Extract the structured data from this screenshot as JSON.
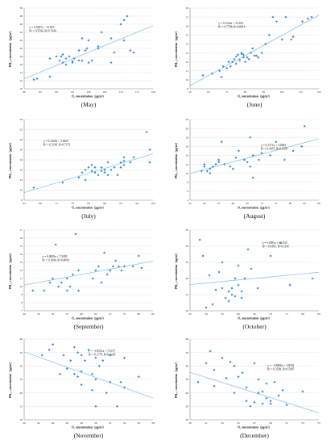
{
  "chart_data": [
    {
      "type": "scatter",
      "label": "(May)",
      "xlabel": "O₃ concentration（μg/m³）",
      "ylabel": "PM₂.₅ concentration（μg/m³）",
      "xlim": [
        80,
        120
      ],
      "xticks": [
        80,
        85,
        90,
        95,
        100,
        105,
        110,
        115,
        120
      ],
      "ylim": [
        10,
        30
      ],
      "yticks": [
        10,
        12,
        14,
        16,
        18,
        20,
        22,
        24,
        26,
        28,
        30
      ],
      "equation": "y = 0.3287x − 13.815",
      "r2": "R² = 0.5542, R=0.7444",
      "trendline": {
        "slope": 0.3287,
        "intercept": -13.815
      },
      "points": [
        [
          83,
          12.3
        ],
        [
          84,
          12.5
        ],
        [
          88,
          13
        ],
        [
          88,
          17.5
        ],
        [
          90,
          18
        ],
        [
          91,
          17
        ],
        [
          91.5,
          18
        ],
        [
          92,
          16.5
        ],
        [
          92,
          18.5
        ],
        [
          93,
          16
        ],
        [
          93,
          17.5
        ],
        [
          94,
          18
        ],
        [
          95,
          16.8
        ],
        [
          95,
          16.5
        ],
        [
          95.5,
          17.5
        ],
        [
          97,
          17
        ],
        [
          97,
          19.5
        ],
        [
          98,
          17
        ],
        [
          98,
          22.5
        ],
        [
          99,
          19.5
        ],
        [
          99.5,
          20
        ],
        [
          100,
          22
        ],
        [
          100,
          16.5
        ],
        [
          101,
          17
        ],
        [
          103,
          20
        ],
        [
          103,
          20.5
        ],
        [
          104,
          24
        ],
        [
          107,
          16.5
        ],
        [
          107,
          22.5
        ],
        [
          108,
          19
        ],
        [
          110,
          26
        ],
        [
          111,
          22
        ],
        [
          111,
          27
        ],
        [
          112,
          28
        ],
        [
          113,
          19.5
        ],
        [
          114,
          19
        ]
      ]
    },
    {
      "type": "scatter",
      "label": "(June)",
      "xlabel": "O₃ concentration（μg/m³）",
      "ylabel": "PM₂.₅ concentration（μg/m³）",
      "xlim": [
        55,
        125
      ],
      "xticks": [
        55,
        65,
        75,
        85,
        95,
        105,
        115,
        125
      ],
      "ylim": [
        9,
        18
      ],
      "yticks": [
        9,
        10,
        11,
        12,
        13,
        14,
        15,
        16,
        17,
        18
      ],
      "equation": "y = 0.1124x + 3.1653",
      "r2": "R² = 0.7768, R=0.8814",
      "trendline": {
        "slope": 0.1124,
        "intercept": 3.1653
      },
      "points": [
        [
          62,
          10.5
        ],
        [
          67,
          10.7
        ],
        [
          71,
          11
        ],
        [
          72,
          10.3
        ],
        [
          73,
          11.5
        ],
        [
          75,
          11.3
        ],
        [
          76,
          12
        ],
        [
          77,
          11.5
        ],
        [
          78,
          12
        ],
        [
          79,
          12.3
        ],
        [
          80,
          11.8
        ],
        [
          80,
          12.6
        ],
        [
          81,
          12.8
        ],
        [
          82,
          12.2
        ],
        [
          83,
          13
        ],
        [
          83,
          12.9
        ],
        [
          84,
          12.5
        ],
        [
          84,
          12.8
        ],
        [
          85,
          12
        ],
        [
          86,
          12.5
        ],
        [
          87,
          12.3
        ],
        [
          88,
          13
        ],
        [
          89,
          13.5
        ],
        [
          90,
          12.7
        ],
        [
          91,
          12.7
        ],
        [
          92,
          12.5
        ],
        [
          94,
          13
        ],
        [
          96,
          14
        ],
        [
          98,
          15
        ],
        [
          100,
          17
        ],
        [
          102,
          16.5
        ],
        [
          105,
          14.5
        ],
        [
          107,
          17
        ],
        [
          110,
          14.5
        ],
        [
          111,
          14.8
        ],
        [
          116,
          16.5
        ],
        [
          119,
          16.8
        ],
        [
          121,
          17
        ]
      ]
    },
    {
      "type": "scatter",
      "label": "(July)",
      "xlabel": "O₃ concentration（μg/m³）",
      "ylabel": "PM₂.₅ concentration（μg/m³）",
      "xlim": [
        63,
        103
      ],
      "xticks": [
        63,
        68,
        73,
        78,
        83,
        88,
        93,
        98,
        103
      ],
      "ylim": [
        8,
        24
      ],
      "yticks": [
        8,
        10,
        12,
        14,
        16,
        18,
        20,
        22,
        24
      ],
      "equation": "y = 0.1929x − 2.6613",
      "r2": "R² = 0.5149, R=0.7176",
      "trendline": {
        "slope": 0.1929,
        "intercept": -2.6613
      },
      "points": [
        [
          66,
          10.5
        ],
        [
          75,
          11.5
        ],
        [
          80,
          12.5
        ],
        [
          81,
          13.5
        ],
        [
          82,
          14
        ],
        [
          82,
          12
        ],
        [
          83,
          14.5
        ],
        [
          84,
          13.8
        ],
        [
          84,
          15
        ],
        [
          85,
          13.5
        ],
        [
          85,
          14.5
        ],
        [
          86,
          13
        ],
        [
          87,
          13.8
        ],
        [
          87,
          14.5
        ],
        [
          88,
          14
        ],
        [
          88,
          13.5
        ],
        [
          89,
          15.5
        ],
        [
          89,
          13
        ],
        [
          90,
          14
        ],
        [
          91,
          14.5
        ],
        [
          92,
          13
        ],
        [
          93,
          15.5
        ],
        [
          93,
          14.5
        ],
        [
          94,
          15
        ],
        [
          94,
          15.8
        ],
        [
          94,
          16.5
        ],
        [
          96,
          15.5
        ],
        [
          97,
          16.5
        ],
        [
          101,
          21.5
        ],
        [
          102,
          18
        ],
        [
          102,
          15.5
        ]
      ]
    },
    {
      "type": "scatter",
      "label": "(August)",
      "xlabel": "O₃ concentration（μg/m³）",
      "ylabel": "PM₂.₅ concentration（μg/m³）",
      "xlim": [
        45,
        90
      ],
      "xticks": [
        45,
        50,
        55,
        60,
        65,
        70,
        75,
        80,
        85,
        90
      ],
      "ylim": [
        4,
        22
      ],
      "yticks": [
        4,
        6,
        8,
        10,
        12,
        14,
        16,
        18,
        20,
        22
      ],
      "equation": "y = 0.1711x + 2.2862",
      "r2": "R² = 0.4297, R=0.6555",
      "trendline": {
        "slope": 0.1711,
        "intercept": 2.2862
      },
      "points": [
        [
          49,
          10.5
        ],
        [
          50,
          11.5
        ],
        [
          50,
          12
        ],
        [
          51,
          10.5
        ],
        [
          52,
          11
        ],
        [
          52,
          10
        ],
        [
          53,
          11.5
        ],
        [
          54,
          12
        ],
        [
          55,
          13
        ],
        [
          55,
          12.5
        ],
        [
          56,
          17
        ],
        [
          57,
          12
        ],
        [
          59,
          11.5
        ],
        [
          60,
          11
        ],
        [
          61,
          13.5
        ],
        [
          62,
          15
        ],
        [
          64,
          13
        ],
        [
          65,
          12.5
        ],
        [
          66,
          11.5
        ],
        [
          66,
          18
        ],
        [
          67,
          14
        ],
        [
          67,
          9
        ],
        [
          69,
          13
        ],
        [
          70,
          14.5
        ],
        [
          73,
          14
        ],
        [
          75,
          17
        ],
        [
          78,
          13
        ],
        [
          81,
          15
        ],
        [
          84,
          16
        ],
        [
          85,
          20.5
        ]
      ]
    },
    {
      "type": "scatter",
      "label": "(September)",
      "xlabel": "O₃ concentration（μg/m³）",
      "ylabel": "PM₂.₅ concentration（μg/m³）",
      "xlim": [
        40,
        85
      ],
      "xticks": [
        40,
        45,
        50,
        55,
        60,
        65,
        70,
        75,
        80,
        85
      ],
      "ylim": [
        7,
        17
      ],
      "yticks": [
        7,
        8,
        9,
        10,
        11,
        12,
        13,
        14,
        15,
        16,
        17
      ],
      "equation": "y = 0.0659x + 7.5495",
      "r2": "R² = 0.1604, R=0.4004",
      "trendline": {
        "slope": 0.0659,
        "intercept": 7.5495
      },
      "points": [
        [
          43,
          9.5
        ],
        [
          47,
          9.5
        ],
        [
          49,
          10.5
        ],
        [
          50,
          11
        ],
        [
          51,
          15.2
        ],
        [
          52,
          10
        ],
        [
          53,
          10.5
        ],
        [
          55,
          9.5
        ],
        [
          55,
          11
        ],
        [
          56,
          10
        ],
        [
          57,
          11.5
        ],
        [
          58,
          16.5
        ],
        [
          59,
          9.5
        ],
        [
          59,
          12
        ],
        [
          64,
          11
        ],
        [
          65,
          12
        ],
        [
          66,
          12.5
        ],
        [
          67,
          10.5
        ],
        [
          68,
          14.2
        ],
        [
          69,
          11.5
        ],
        [
          70,
          12
        ],
        [
          71,
          12.5
        ],
        [
          72,
          13.2
        ],
        [
          73,
          12.5
        ],
        [
          74,
          12
        ],
        [
          75,
          12.5
        ],
        [
          78,
          12.5
        ],
        [
          80,
          13.8
        ],
        [
          81,
          12.3
        ]
      ]
    },
    {
      "type": "scatter",
      "label": "(October)",
      "xlabel": "O₃ concentration（μg/m³）",
      "ylabel": "PM₂.₅ concentration（μg/m³）",
      "xlim": [
        45,
        85
      ],
      "xticks": [
        45,
        50,
        55,
        60,
        65,
        70,
        75,
        80,
        85
      ],
      "ylim": [
        10,
        35
      ],
      "yticks": [
        10,
        15,
        20,
        25,
        30,
        35
      ],
      "equation": "y = 0.0953x + 13.833",
      "r2": "R² = 0.0181, R=0.1345",
      "trendline": {
        "slope": 0.0953,
        "intercept": 13.833
      },
      "points": [
        [
          48,
          32
        ],
        [
          49,
          27
        ],
        [
          50,
          11
        ],
        [
          51,
          21
        ],
        [
          52,
          12
        ],
        [
          53,
          16.5
        ],
        [
          54,
          22
        ],
        [
          55,
          25
        ],
        [
          55,
          17
        ],
        [
          56,
          14
        ],
        [
          57,
          16
        ],
        [
          57,
          13
        ],
        [
          58,
          15
        ],
        [
          58,
          17
        ],
        [
          59,
          14.5
        ],
        [
          59,
          20
        ],
        [
          60,
          24
        ],
        [
          60,
          18
        ],
        [
          61,
          14
        ],
        [
          61,
          16
        ],
        [
          62,
          20
        ],
        [
          63,
          29
        ],
        [
          64,
          23
        ],
        [
          66,
          17
        ],
        [
          70,
          27
        ],
        [
          73,
          31
        ],
        [
          76,
          18
        ],
        [
          83,
          20
        ]
      ]
    },
    {
      "type": "scatter",
      "label": "(November)",
      "xlabel": "O₃ concentration（μg/m³）",
      "ylabel": "PM₂.₅ concentration（μg/m³）",
      "xlim": [
        40,
        58
      ],
      "xticks": [
        40,
        42,
        44,
        46,
        48,
        50,
        52,
        54,
        56,
        58
      ],
      "ylim": [
        10,
        40
      ],
      "yticks": [
        10,
        15,
        20,
        25,
        30,
        35,
        40
      ],
      "equation": "y = −0.9531x + 73.377",
      "r2": "R² = 0.1779, R=0.4218",
      "trendline": {
        "slope": -0.9531,
        "intercept": 73.377
      },
      "points": [
        [
          42.5,
          34
        ],
        [
          43.5,
          36
        ],
        [
          44,
          38
        ],
        [
          45,
          27
        ],
        [
          45.5,
          34
        ],
        [
          46,
          29
        ],
        [
          46.5,
          32
        ],
        [
          47,
          27
        ],
        [
          47,
          37
        ],
        [
          47.5,
          26
        ],
        [
          47.5,
          35
        ],
        [
          48,
          28
        ],
        [
          48,
          23
        ],
        [
          48,
          34
        ],
        [
          48.5,
          32
        ],
        [
          49,
          36
        ],
        [
          49.5,
          27
        ],
        [
          49.5,
          21
        ],
        [
          50,
          15
        ],
        [
          50,
          25
        ],
        [
          50,
          33
        ],
        [
          50.5,
          30
        ],
        [
          51,
          32
        ],
        [
          51.5,
          20
        ],
        [
          52,
          34
        ],
        [
          52,
          24
        ],
        [
          53,
          15
        ],
        [
          53.5,
          24
        ],
        [
          54,
          33
        ],
        [
          54,
          22
        ],
        [
          56,
          26
        ]
      ]
    },
    {
      "type": "scatter",
      "label": "(December)",
      "xlabel": "O₃ concentration（μg/m³）",
      "ylabel": "PM₂.₅ concentration（μg/m³）",
      "xlim": [
        39,
        55
      ],
      "xticks": [
        39,
        41,
        43,
        45,
        47,
        49,
        51,
        53,
        55
      ],
      "ylim": [
        20,
        80
      ],
      "yticks": [
        20,
        30,
        40,
        50,
        60,
        70,
        80
      ],
      "equation": "y = −1.8809x + 128.58",
      "r2": "R² = 0.2508, R=0.5007",
      "trendline": {
        "slope": -1.8809,
        "intercept": 128.58
      },
      "points": [
        [
          40,
          48
        ],
        [
          41,
          62
        ],
        [
          41.5,
          71
        ],
        [
          42,
          45
        ],
        [
          42,
          57
        ],
        [
          43,
          66
        ],
        [
          43.5,
          51
        ],
        [
          44,
          63
        ],
        [
          44.5,
          60
        ],
        [
          44.5,
          40
        ],
        [
          45,
          52
        ],
        [
          45.5,
          55
        ],
        [
          46,
          34
        ],
        [
          46,
          44
        ],
        [
          46.5,
          30
        ],
        [
          47,
          33
        ],
        [
          47,
          62
        ],
        [
          47.5,
          40
        ],
        [
          47.5,
          50
        ],
        [
          48,
          32
        ],
        [
          48,
          41
        ],
        [
          48.5,
          47
        ],
        [
          48.5,
          36
        ],
        [
          49,
          34
        ],
        [
          49,
          32
        ],
        [
          49.5,
          48
        ],
        [
          50,
          38
        ],
        [
          50.5,
          42
        ],
        [
          51,
          31
        ],
        [
          53,
          41
        ]
      ]
    }
  ]
}
